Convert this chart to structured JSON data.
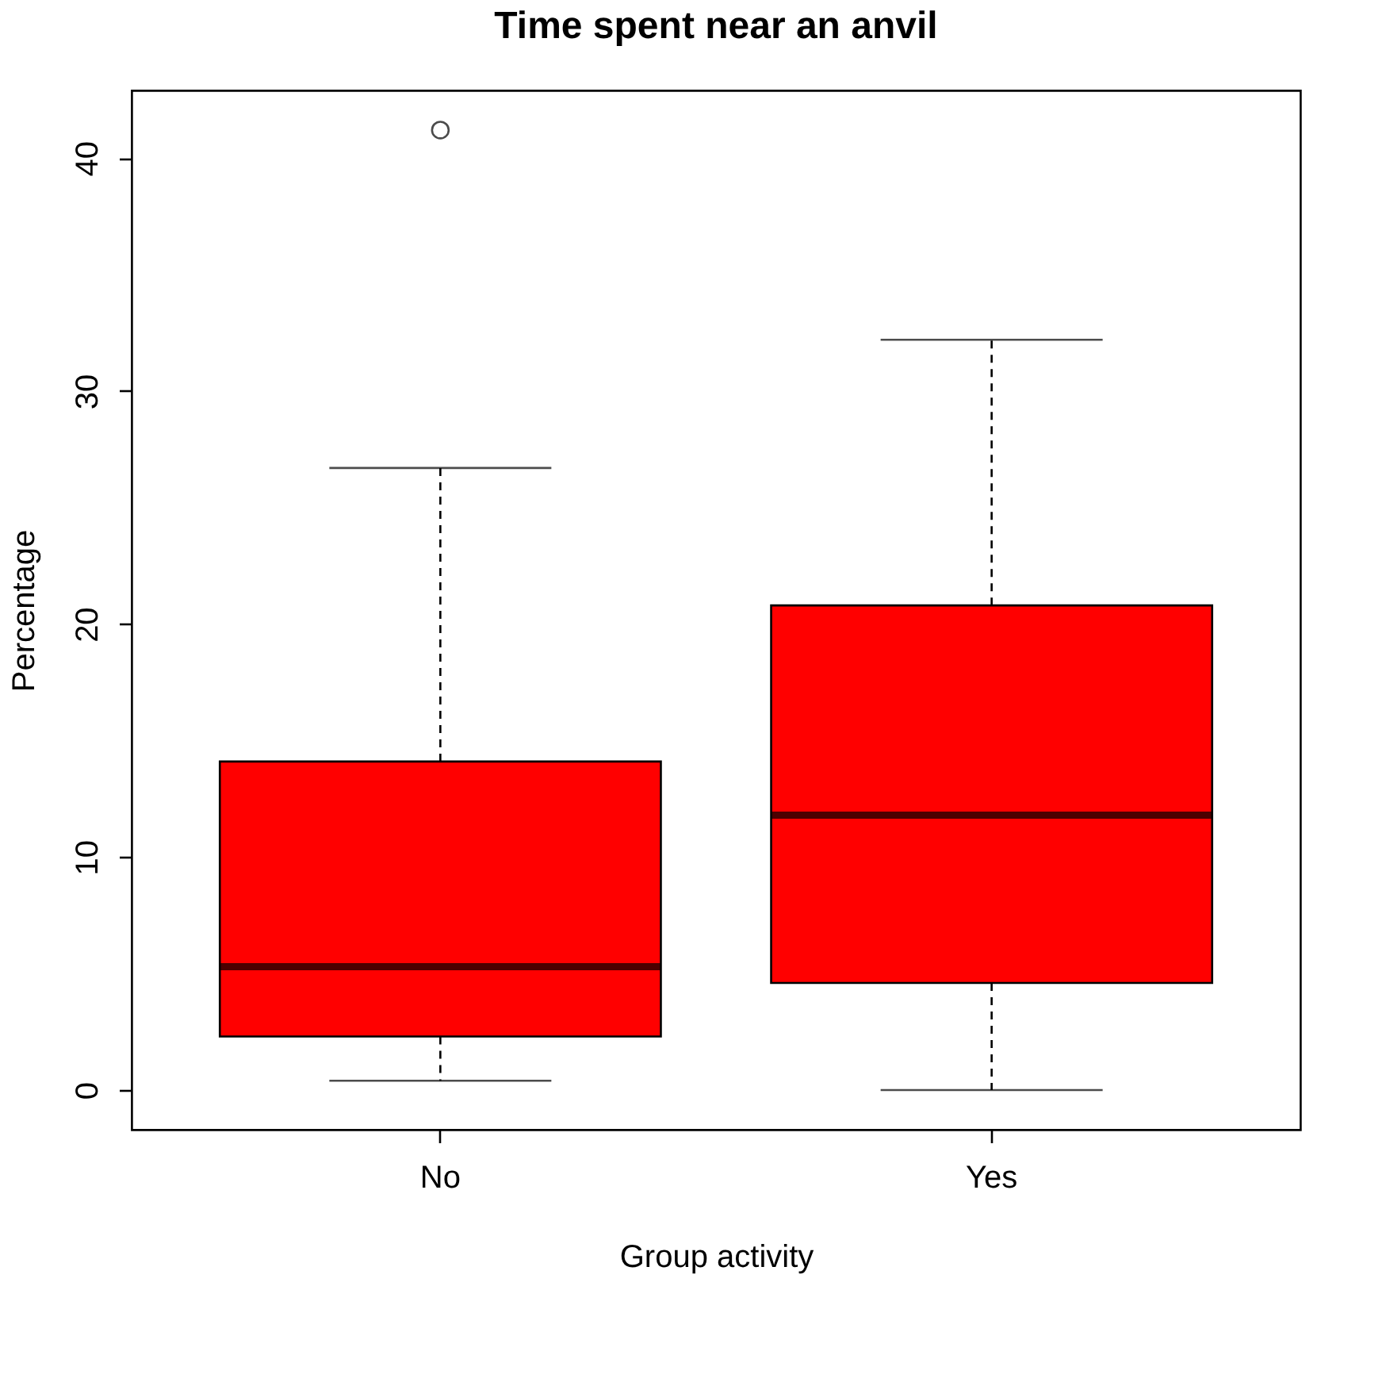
{
  "chart_data": {
    "type": "box",
    "title": "Time spent near an anvil",
    "xlabel": "Group activity",
    "ylabel": "Percentage",
    "categories": [
      "No",
      "Yes"
    ],
    "boxes": [
      {
        "low": 0.4,
        "q1": 2.3,
        "median": 5.3,
        "q3": 14.1,
        "high": 26.7,
        "outliers": [
          41.2
        ]
      },
      {
        "low": 0.0,
        "q1": 4.6,
        "median": 11.8,
        "q3": 20.8,
        "high": 32.2
      }
    ],
    "color": "#ff0000",
    "ylim": [
      -1.7,
      42.9
    ],
    "yticks": [
      0,
      10,
      20,
      30,
      40
    ],
    "grid": false
  }
}
